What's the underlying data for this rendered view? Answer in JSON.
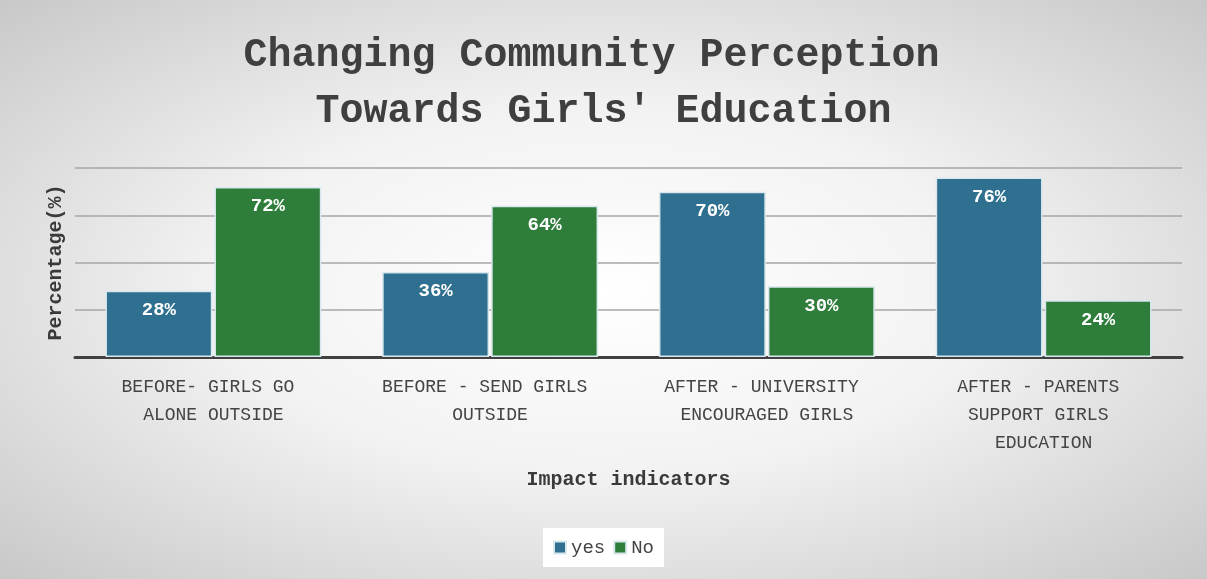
{
  "chart_data": {
    "type": "bar",
    "title": "Changing Community Perception Towards Girls' Education",
    "xlabel": "Impact indicators",
    "ylabel": "Percentage(%)",
    "categories": [
      "BEFORE- GIRLS GO ALONE OUTSIDE",
      "BEFORE - SEND GIRLS OUTSIDE",
      "AFTER - UNIVERSITY ENCOURAGED GIRLS",
      "AFTER - PARENTS SUPPORT GIRLS EDUCATION"
    ],
    "series": [
      {
        "name": "yes",
        "color": "#2f6f8f",
        "values": [
          28,
          36,
          70,
          76
        ],
        "value_labels": [
          "28%",
          "36%",
          "70%",
          "76%"
        ]
      },
      {
        "name": "No",
        "color": "#2e7d3b",
        "values": [
          72,
          64,
          30,
          24
        ],
        "value_labels": [
          "72%",
          "64%",
          "30%",
          "24%"
        ]
      }
    ],
    "tick_labels": "x",
    "grid": "y",
    "legend": "bottom"
  }
}
